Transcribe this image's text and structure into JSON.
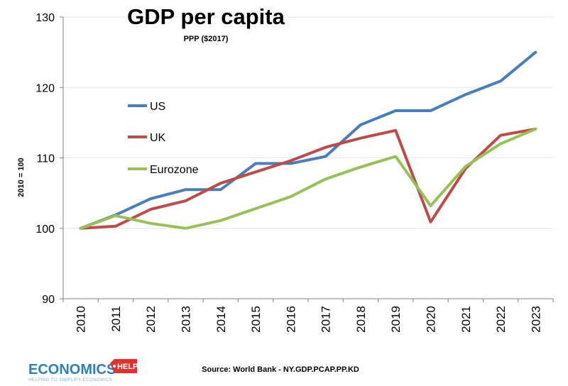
{
  "chart_data": {
    "type": "line",
    "title": "GDP per capita",
    "subtitle": "PPP ($2017)",
    "xlabel": "",
    "ylabel": "2010 = 100",
    "ylim": [
      90,
      130
    ],
    "yticks": [
      90,
      100,
      110,
      120,
      130
    ],
    "categories": [
      "2010",
      "2011",
      "2012",
      "2013",
      "2014",
      "2015",
      "2016",
      "2017",
      "2018",
      "2019",
      "2020",
      "2021",
      "2022",
      "2023"
    ],
    "series": [
      {
        "name": "US",
        "color": "#4a7ebb",
        "values": [
          100,
          101.9,
          104.2,
          105.5,
          105.5,
          109.2,
          109.2,
          110.2,
          114.7,
          116.7,
          116.7,
          119.0,
          120.9,
          125.0
        ]
      },
      {
        "name": "UK",
        "color": "#be4b48",
        "values": [
          100,
          100.3,
          102.7,
          103.9,
          106.4,
          108.0,
          109.6,
          111.5,
          112.8,
          113.9,
          100.9,
          108.5,
          113.2,
          114.1
        ]
      },
      {
        "name": "Eurozone",
        "color": "#98c155",
        "values": [
          100,
          101.8,
          100.7,
          100.0,
          101.1,
          102.8,
          104.5,
          107.0,
          108.7,
          110.2,
          103.2,
          108.8,
          112.0,
          114.1
        ]
      }
    ],
    "legend": "upper-left, inside plot"
  },
  "source": "Source:  World Bank - NY.GDP.PCAP.PP.KD",
  "logo": {
    "main": "ECONOMICS",
    "help": "HELP",
    "tagline": "HELPING TO SIMPLIFY ECONOMICS",
    "main_color": "#2f7fbf",
    "help_color": "#e2322d"
  }
}
